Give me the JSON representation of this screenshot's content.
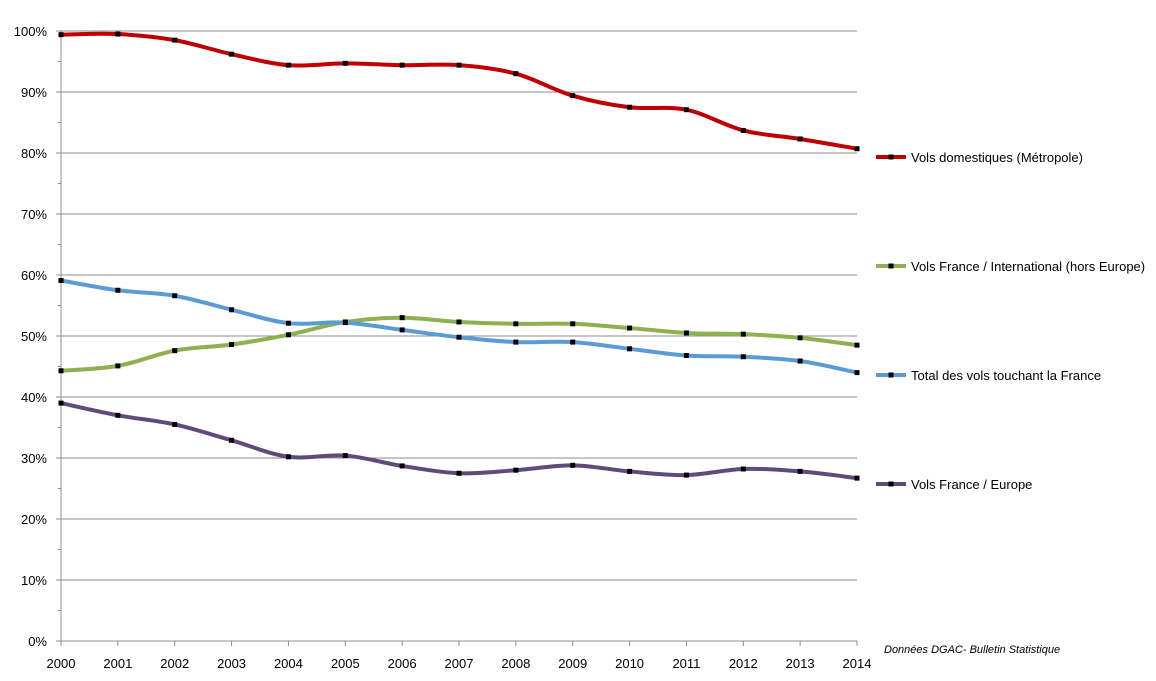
{
  "chart_data": {
    "type": "line",
    "title": "",
    "xlabel": "",
    "ylabel": "",
    "x": [
      2000,
      2001,
      2002,
      2003,
      2004,
      2005,
      2006,
      2007,
      2008,
      2009,
      2010,
      2011,
      2012,
      2013,
      2014
    ],
    "x_tick_labels": [
      "2000",
      "2001",
      "2002",
      "2003",
      "2004",
      "2005",
      "2006",
      "2007",
      "2008",
      "2009",
      "2010",
      "2011",
      "2012",
      "2013",
      "2014"
    ],
    "ylim": [
      0,
      100
    ],
    "y_ticks": [
      0,
      10,
      20,
      30,
      40,
      50,
      60,
      70,
      80,
      90,
      100
    ],
    "y_tick_labels": [
      "0%",
      "10%",
      "20%",
      "30%",
      "40%",
      "50%",
      "60%",
      "70%",
      "80%",
      "90%",
      "100%"
    ],
    "grid": true,
    "legend_position": "right",
    "series": [
      {
        "name": "Vols domestiques (Métropole)",
        "color": "#c00000",
        "values": [
          99.4,
          99.5,
          98.5,
          96.2,
          94.4,
          94.7,
          94.4,
          94.4,
          93.0,
          89.4,
          87.5,
          87.1,
          83.7,
          82.3,
          80.7
        ]
      },
      {
        "name": "Vols France / International (hors Europe)",
        "color": "#8fb04e",
        "values": [
          44.3,
          45.1,
          47.6,
          48.6,
          50.2,
          52.3,
          53.0,
          52.3,
          52.0,
          52.0,
          51.3,
          50.5,
          50.3,
          49.7,
          48.5
        ]
      },
      {
        "name": "Total des vols touchant la France",
        "color": "#5b9bd5",
        "values": [
          59.1,
          57.5,
          56.6,
          54.3,
          52.1,
          52.2,
          51.0,
          49.8,
          49.0,
          49.0,
          47.9,
          46.8,
          46.6,
          45.9,
          44.0
        ]
      },
      {
        "name": "Vols France / Europe",
        "color": "#604a7b",
        "values": [
          39.0,
          37.0,
          35.5,
          32.9,
          30.2,
          30.4,
          28.7,
          27.5,
          28.0,
          28.8,
          27.8,
          27.2,
          28.2,
          27.8,
          26.7
        ]
      }
    ],
    "annotations": [
      "Données DGAC- Bulletin Statistique"
    ]
  }
}
